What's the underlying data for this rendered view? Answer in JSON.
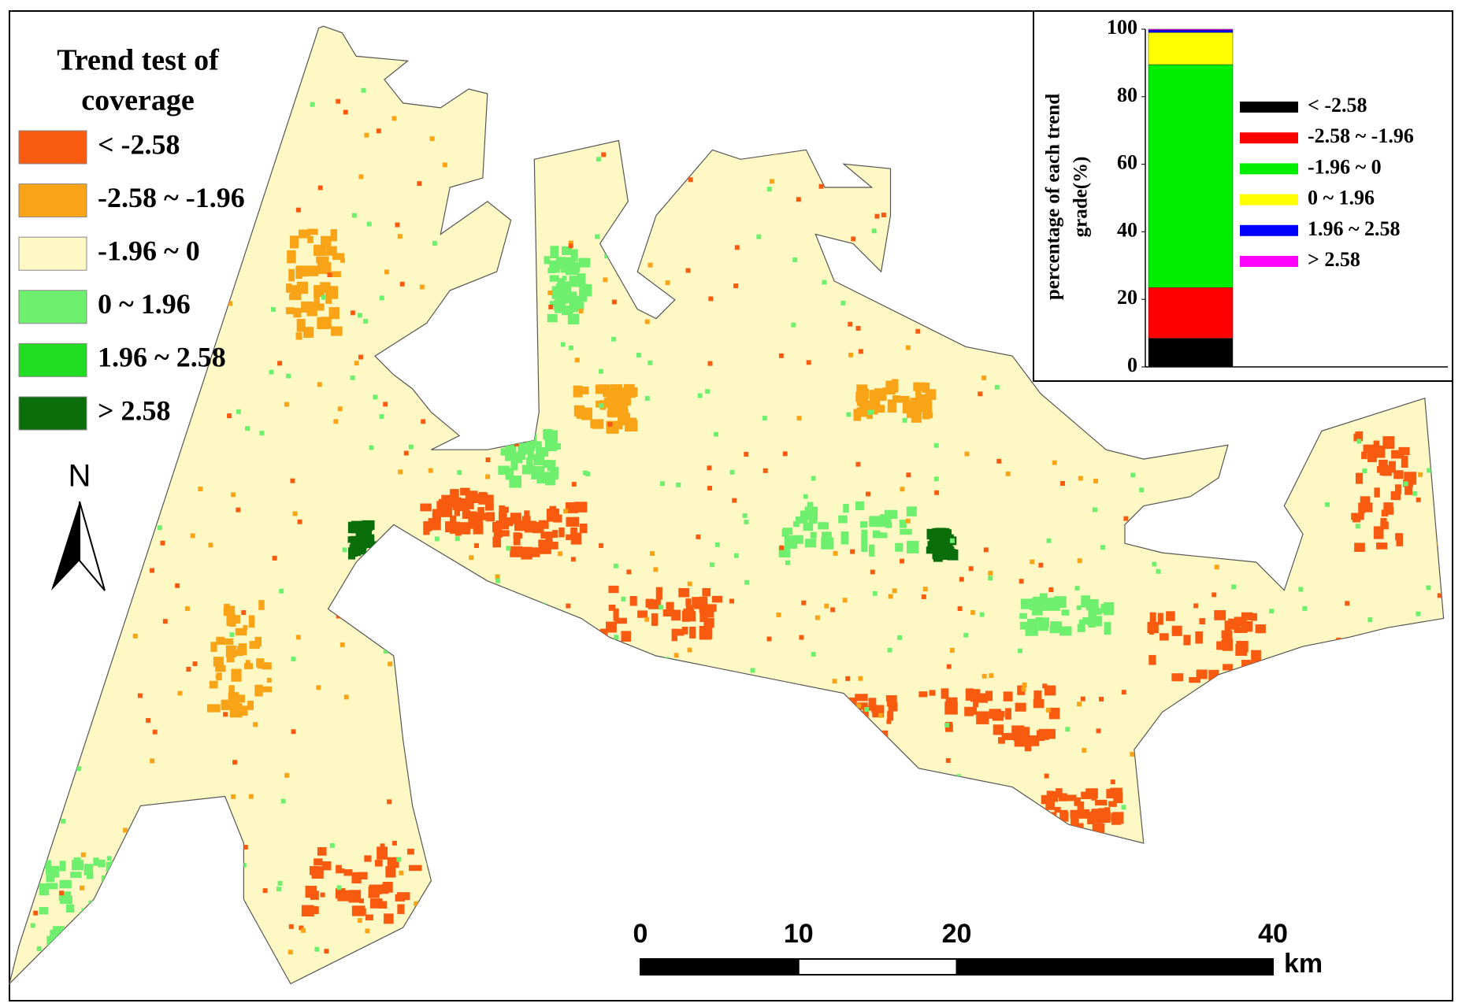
{
  "map": {
    "legend_title": [
      "Trend test of",
      "coverage"
    ],
    "legend": [
      {
        "label": "< -2.58",
        "color": "#f85a0f"
      },
      {
        "label": "-2.58 ~ -1.96",
        "color": "#f9a316"
      },
      {
        "label": "-1.96 ~ 0",
        "color": "#fdf8c4"
      },
      {
        "label": "0 ~ 1.96",
        "color": "#6ef06e"
      },
      {
        "label": "1.96 ~ 2.58",
        "color": "#22dc22"
      },
      {
        "label": "> 2.58",
        "color": "#0a6e0a"
      }
    ],
    "north_label": "N",
    "scale_bar": {
      "ticks": [
        0,
        10,
        20,
        40
      ],
      "xlim": [
        0,
        40
      ],
      "unit": "km"
    }
  },
  "chart_data": {
    "type": "bar",
    "stacked": true,
    "y_label": [
      "percentage of each trend",
      "grade(%)"
    ],
    "categories": [
      null
    ],
    "ylim": [
      0,
      100
    ],
    "yticks": [
      0,
      20,
      40,
      60,
      80,
      100
    ],
    "series": [
      {
        "name": "< -2.58",
        "color": "#000000",
        "values": [
          8.5
        ]
      },
      {
        "name": "-2.58 ~ -1.96",
        "color": "#ff0000",
        "values": [
          15
        ]
      },
      {
        "name": "-1.96 ~ 0",
        "color": "#00ee00",
        "values": [
          66
        ]
      },
      {
        "name": "0 ~ 1.96",
        "color": "#ffff00",
        "values": [
          9.5
        ]
      },
      {
        "name": "1.96 ~ 2.58",
        "color": "#0000ff",
        "values": [
          0.7
        ]
      },
      {
        "name": "> 2.58",
        "color": "#ff00ff",
        "values": [
          0.3
        ]
      }
    ]
  }
}
